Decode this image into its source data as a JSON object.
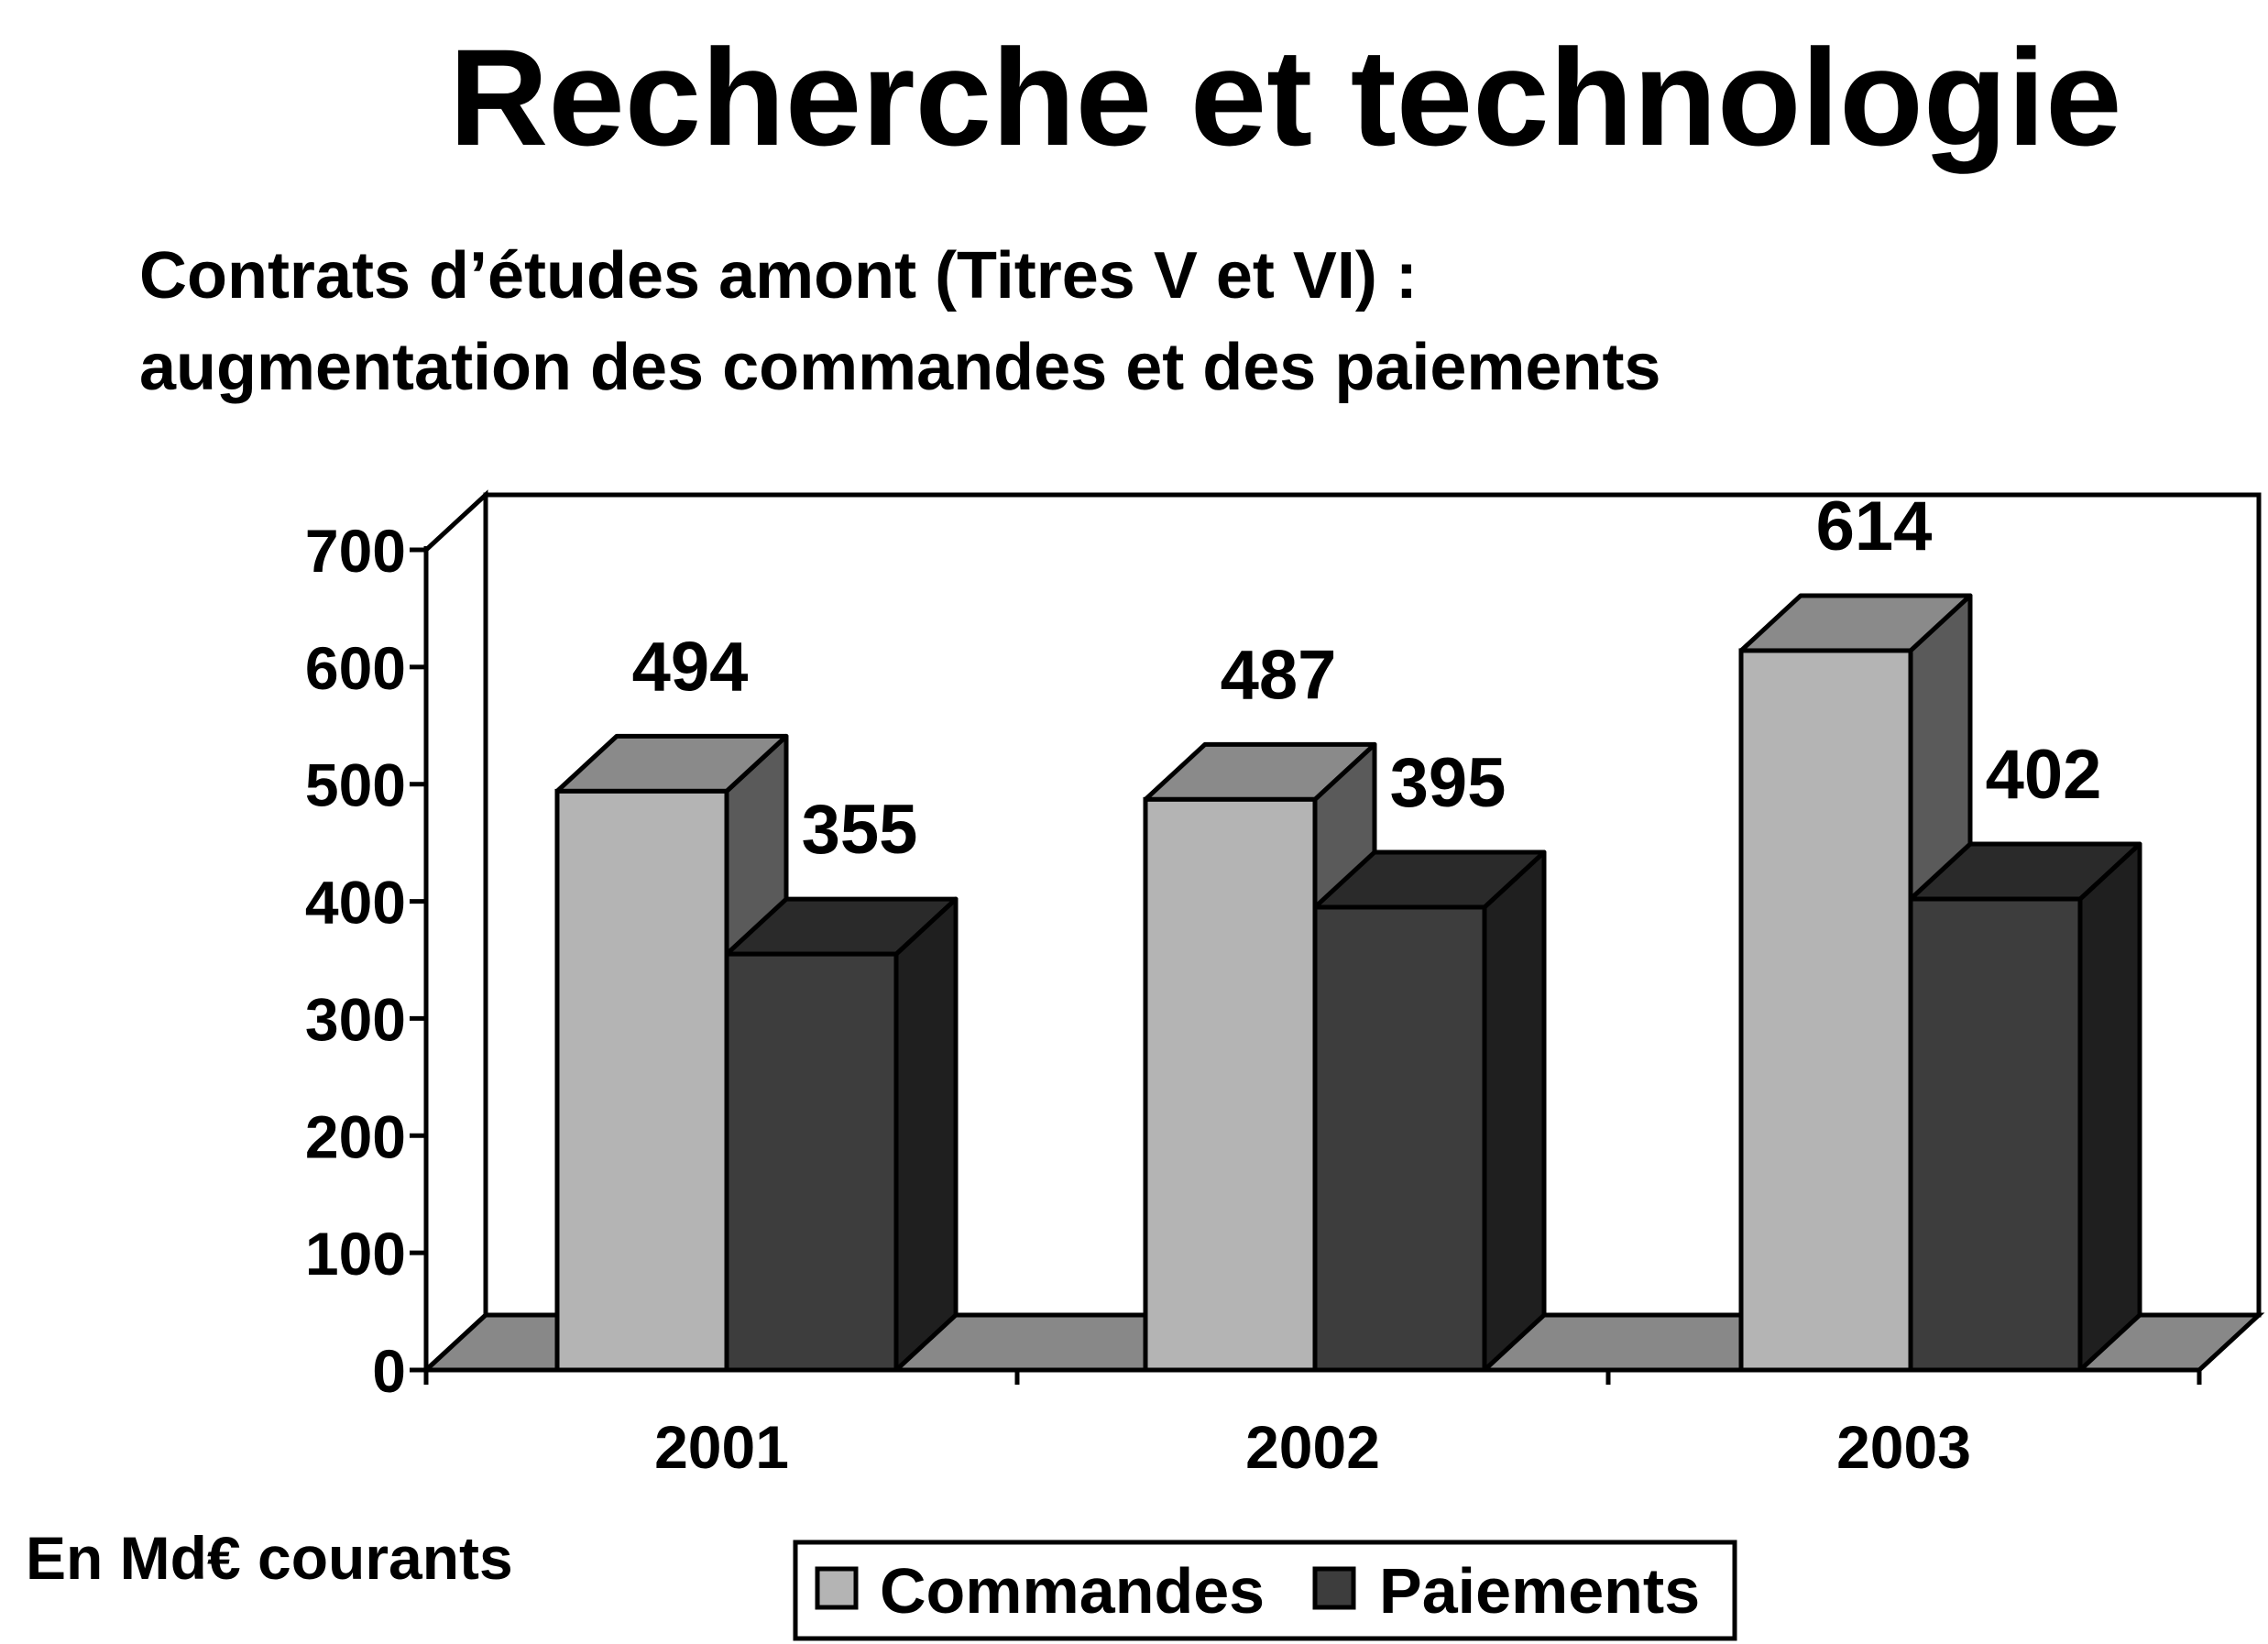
{
  "title": "Recherche et technologie",
  "subtitle_line1": "Contrats d’études amont (Titres V et VI) :",
  "subtitle_line2": "augmentation des commandes et des paiements",
  "unit_note": "En Md€ courants",
  "chart_data": {
    "type": "bar",
    "style": "3d-clustered",
    "categories": [
      "2001",
      "2002",
      "2003"
    ],
    "series": [
      {
        "name": "Commandes",
        "values": [
          494,
          487,
          614
        ],
        "color": "#b4b4b4",
        "top_color": "#8a8a8a",
        "side_color": "#5a5a5a"
      },
      {
        "name": "Paiements",
        "values": [
          355,
          395,
          402
        ],
        "color": "#3d3d3d",
        "top_color": "#2a2a2a",
        "side_color": "#1f1f1f"
      }
    ],
    "ylim": [
      0,
      700
    ],
    "yticks": [
      0,
      100,
      200,
      300,
      400,
      500,
      600,
      700
    ],
    "ytick_labels": [
      "0",
      "100",
      "200",
      "300",
      "400",
      "500",
      "600",
      "700"
    ],
    "data_labels": [
      "494",
      "487",
      "614",
      "355",
      "395",
      "402"
    ],
    "legend_position": "bottom-center",
    "grid": false,
    "floor_color": "#888888"
  }
}
